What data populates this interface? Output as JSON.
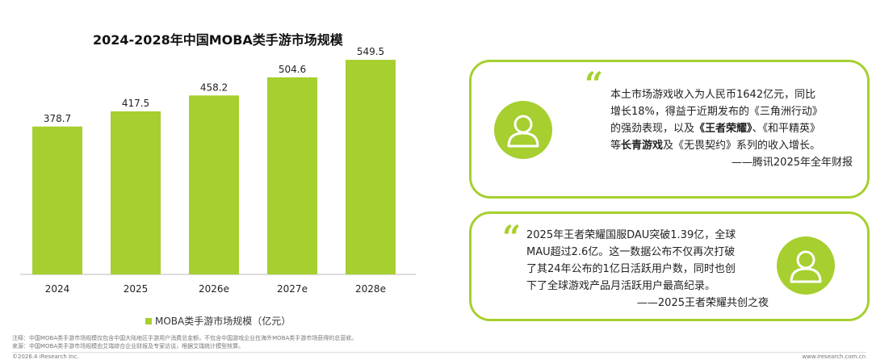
{
  "chart_data": {
    "type": "bar",
    "title": "2024-2028年中国MOBA类手游市场规模",
    "categories": [
      "2024",
      "2025",
      "2026e",
      "2027e",
      "2028e"
    ],
    "values": [
      378.7,
      417.5,
      458.2,
      504.6,
      549.5
    ],
    "legend": "MOBA类手游市场规模（亿元）",
    "legend_position": "bottom",
    "grid": false,
    "ylim": [
      0,
      620
    ],
    "bar_color": "#a6cf2f"
  },
  "quotes": [
    {
      "mark": "“",
      "lines": [
        [
          {
            "t": "本土市场游戏收入为人民币1642亿元，同比"
          }
        ],
        [
          {
            "t": "增长18%，得益于近期发布的《三角洲行动》"
          }
        ],
        [
          {
            "t": "的强劲表现，以及"
          },
          {
            "t": "《王者荣耀》",
            "b": true
          },
          {
            "t": "、《和平精英》"
          }
        ],
        [
          {
            "t": "等"
          },
          {
            "t": "长青游戏",
            "b": true
          },
          {
            "t": "及《无畏契约》系列的收入增长。"
          }
        ]
      ],
      "source": "——腾讯2025年全年财报"
    },
    {
      "mark": "“",
      "lines": [
        [
          {
            "t": "2025年王者荣耀国服DAU突破1.39亿，全球"
          }
        ],
        [
          {
            "t": "MAU超过2.6亿。这一数据公布不仅再次打破"
          }
        ],
        [
          {
            "t": "了其24年公布的1亿日活跃用户数，同时也创"
          }
        ],
        [
          {
            "t": "下了全球游戏产品月活跃用户最高纪录。"
          }
        ]
      ],
      "source": "——2025王者荣耀共创之夜"
    }
  ],
  "footer": {
    "note": "注释：中国MOBA类手游市场规模仅包含中国大陆地区手游用户消费总金额，不包含中国游戏企业在海外MOBA类手游市场获得的总营收。",
    "source": "来源：中国MOBA类手游市场规模由艾瑞综合企业财报及专家访谈，根据艾瑞统计模型核算。",
    "copyright": "©2026.4 iResearch Inc.",
    "website": "www.iresearch.com.cn"
  },
  "colors": {
    "accent": "#a6cf2f"
  }
}
